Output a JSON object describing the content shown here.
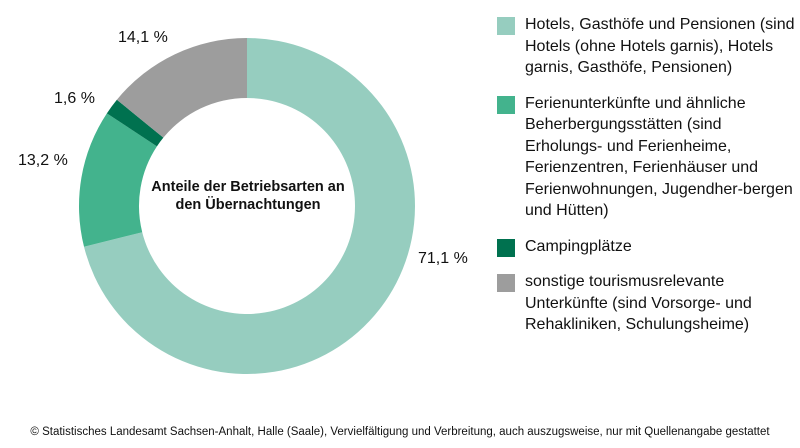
{
  "chart_data": {
    "type": "pie",
    "variant": "donut",
    "title": "Anteile der Betriebsarten an den Übernachtungen",
    "slices": [
      {
        "name": "Hotels, Gasthöfe und Pensionen (sind Hotels (ohne Hotels garnis), Hotels garnis, Gasthöfe, Pensionen)",
        "value": 71.1,
        "label": "71,1 %",
        "color": "#96cdbf"
      },
      {
        "name": "Ferienunterkünfte und ähnliche Beherbergungsstätten (sind Erholungs- und Ferienheime, Ferienzentren, Ferienhäuser und Ferienwohnungen, Jugendherbergen und Hütten)",
        "value": 13.2,
        "label": "13,2 %",
        "color": "#43b38d"
      },
      {
        "name": "Campingplätze",
        "value": 1.6,
        "label": "1,6 %",
        "color": "#00714f"
      },
      {
        "name": "sonstige tourismusrelevante Unterkünfte (sind Vorsorge- und Rehakliniken, Schulungsheime)",
        "value": 14.1,
        "label": "14,1 %",
        "color": "#9d9d9d"
      }
    ],
    "legend_position": "right"
  },
  "legend": [
    "Hotels, Gasthöfe und Pensionen (sind Hotels (ohne Hotels garnis), Hotels garnis, Gasthöfe, Pensionen)",
    "Ferienunterkünfte und ähnliche Beherbergungsstätten (sind Erholungs- und Ferienheime, Ferienzentren, Ferienhäuser und Ferienwohnungen, Jugendher-bergen und Hütten)",
    "Campingplätze",
    "sonstige tourismusrelevante Unterkünfte (sind Vorsorge- und Rehakliniken, Schulungsheime)"
  ],
  "footer": "© Statistisches Landesamt Sachsen-Anhalt, Halle (Saale), Vervielfältigung und Verbreitung, auch auszugsweise, nur mit Quellenangabe gestattet"
}
